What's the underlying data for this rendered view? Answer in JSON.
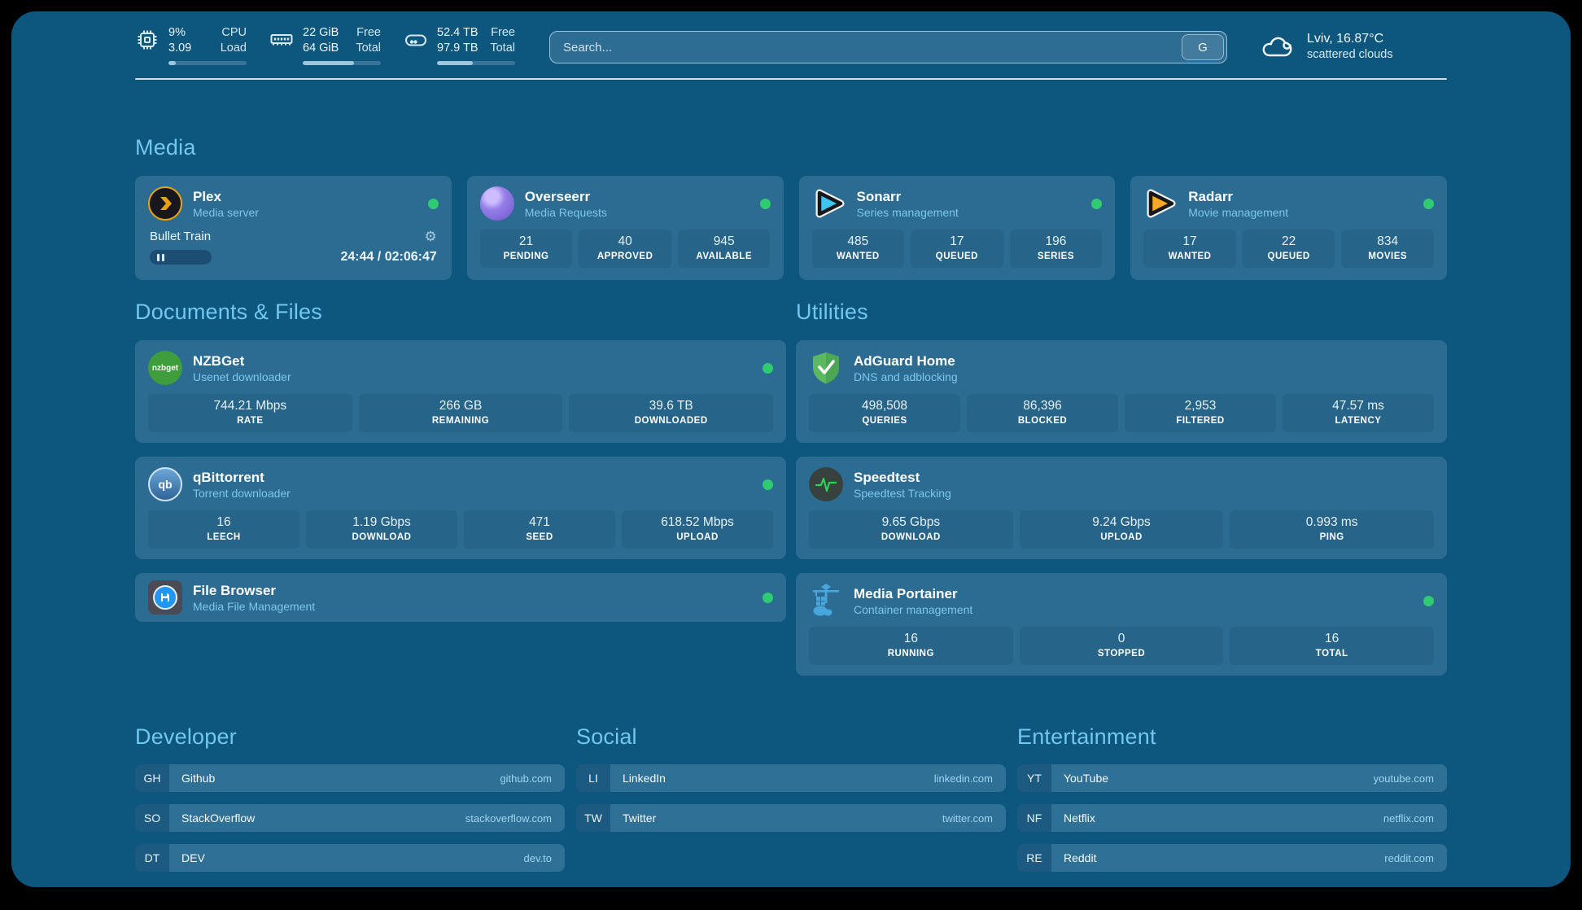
{
  "topbar": {
    "monitors": [
      {
        "value_top": "9%",
        "value_bottom": "3.09",
        "label_top": "CPU",
        "label_bottom": "Load",
        "progress_pct": 9
      },
      {
        "value_top": "22 GiB",
        "value_bottom": "64 GiB",
        "label_top": "Free",
        "label_bottom": "Total",
        "progress_pct": 66
      },
      {
        "value_top": "52.4 TB",
        "value_bottom": "97.9 TB",
        "label_top": "Free",
        "label_bottom": "Total",
        "progress_pct": 46
      }
    ],
    "search": {
      "placeholder": "Search...",
      "button": "G"
    },
    "weather": {
      "summary": "Lviv, 16.87°C",
      "condition": "scattered clouds"
    }
  },
  "media": {
    "title": "Media",
    "plex": {
      "title": "Plex",
      "subtitle": "Media server",
      "now_playing": "Bullet Train",
      "time": "24:44 / 02:06:47",
      "gear_glyph": "⚙"
    },
    "overseerr": {
      "title": "Overseerr",
      "subtitle": "Media Requests",
      "stats": [
        {
          "value": "21",
          "label": "PENDING"
        },
        {
          "value": "40",
          "label": "APPROVED"
        },
        {
          "value": "945",
          "label": "AVAILABLE"
        }
      ]
    },
    "sonarr": {
      "title": "Sonarr",
      "subtitle": "Series management",
      "stats": [
        {
          "value": "485",
          "label": "WANTED"
        },
        {
          "value": "17",
          "label": "QUEUED"
        },
        {
          "value": "196",
          "label": "SERIES"
        }
      ]
    },
    "radarr": {
      "title": "Radarr",
      "subtitle": "Movie management",
      "stats": [
        {
          "value": "17",
          "label": "WANTED"
        },
        {
          "value": "22",
          "label": "QUEUED"
        },
        {
          "value": "834",
          "label": "MOVIES"
        }
      ]
    }
  },
  "documents": {
    "title": "Documents & Files",
    "nzbget": {
      "title": "NZBGet",
      "subtitle": "Usenet downloader",
      "badge": "nzbget",
      "stats": [
        {
          "value": "744.21 Mbps",
          "label": "RATE"
        },
        {
          "value": "266 GB",
          "label": "REMAINING"
        },
        {
          "value": "39.6 TB",
          "label": "DOWNLOADED"
        }
      ]
    },
    "qbittorrent": {
      "title": "qBittorrent",
      "subtitle": "Torrent downloader",
      "badge": "qb",
      "stats": [
        {
          "value": "16",
          "label": "LEECH"
        },
        {
          "value": "1.19 Gbps",
          "label": "DOWNLOAD"
        },
        {
          "value": "471",
          "label": "SEED"
        },
        {
          "value": "618.52 Mbps",
          "label": "UPLOAD"
        }
      ]
    },
    "filebrowser": {
      "title": "File Browser",
      "subtitle": "Media File Management"
    }
  },
  "utilities": {
    "title": "Utilities",
    "adguard": {
      "title": "AdGuard Home",
      "subtitle": "DNS and adblocking",
      "stats": [
        {
          "value": "498,508",
          "label": "QUERIES"
        },
        {
          "value": "86,396",
          "label": "BLOCKED"
        },
        {
          "value": "2,953",
          "label": "FILTERED"
        },
        {
          "value": "47.57 ms",
          "label": "LATENCY"
        }
      ]
    },
    "speedtest": {
      "title": "Speedtest",
      "subtitle": "Speedtest Tracking",
      "stats": [
        {
          "value": "9.65 Gbps",
          "label": "DOWNLOAD"
        },
        {
          "value": "9.24 Gbps",
          "label": "UPLOAD"
        },
        {
          "value": "0.993 ms",
          "label": "PING"
        }
      ]
    },
    "portainer": {
      "title": "Media Portainer",
      "subtitle": "Container management",
      "stats": [
        {
          "value": "16",
          "label": "RUNNING"
        },
        {
          "value": "0",
          "label": "STOPPED"
        },
        {
          "value": "16",
          "label": "TOTAL"
        }
      ]
    }
  },
  "bookmarks": {
    "developer": {
      "title": "Developer",
      "items": [
        {
          "abbr": "GH",
          "name": "Github",
          "url": "github.com"
        },
        {
          "abbr": "SO",
          "name": "StackOverflow",
          "url": "stackoverflow.com"
        },
        {
          "abbr": "DT",
          "name": "DEV",
          "url": "dev.to"
        }
      ]
    },
    "social": {
      "title": "Social",
      "items": [
        {
          "abbr": "LI",
          "name": "LinkedIn",
          "url": "linkedin.com"
        },
        {
          "abbr": "TW",
          "name": "Twitter",
          "url": "twitter.com"
        }
      ]
    },
    "entertainment": {
      "title": "Entertainment",
      "items": [
        {
          "abbr": "YT",
          "name": "YouTube",
          "url": "youtube.com"
        },
        {
          "abbr": "NF",
          "name": "Netflix",
          "url": "netflix.com"
        },
        {
          "abbr": "RE",
          "name": "Reddit",
          "url": "reddit.com"
        }
      ]
    }
  },
  "icons": {
    "cpu": "chip-outline",
    "memory": "ram-stick",
    "disk": "drive-outline",
    "weather": "scattered-clouds",
    "plex": "orange-chevron",
    "status": "green-dot",
    "pause": "double-bar",
    "gear": "⚙"
  },
  "colors": {
    "background": "#0d567e",
    "card": "#2c6c92",
    "stat_box": "#27648a",
    "accent": "#72c7ee",
    "status_online": "#2ecb72",
    "subtitle": "#7ec6ea"
  }
}
